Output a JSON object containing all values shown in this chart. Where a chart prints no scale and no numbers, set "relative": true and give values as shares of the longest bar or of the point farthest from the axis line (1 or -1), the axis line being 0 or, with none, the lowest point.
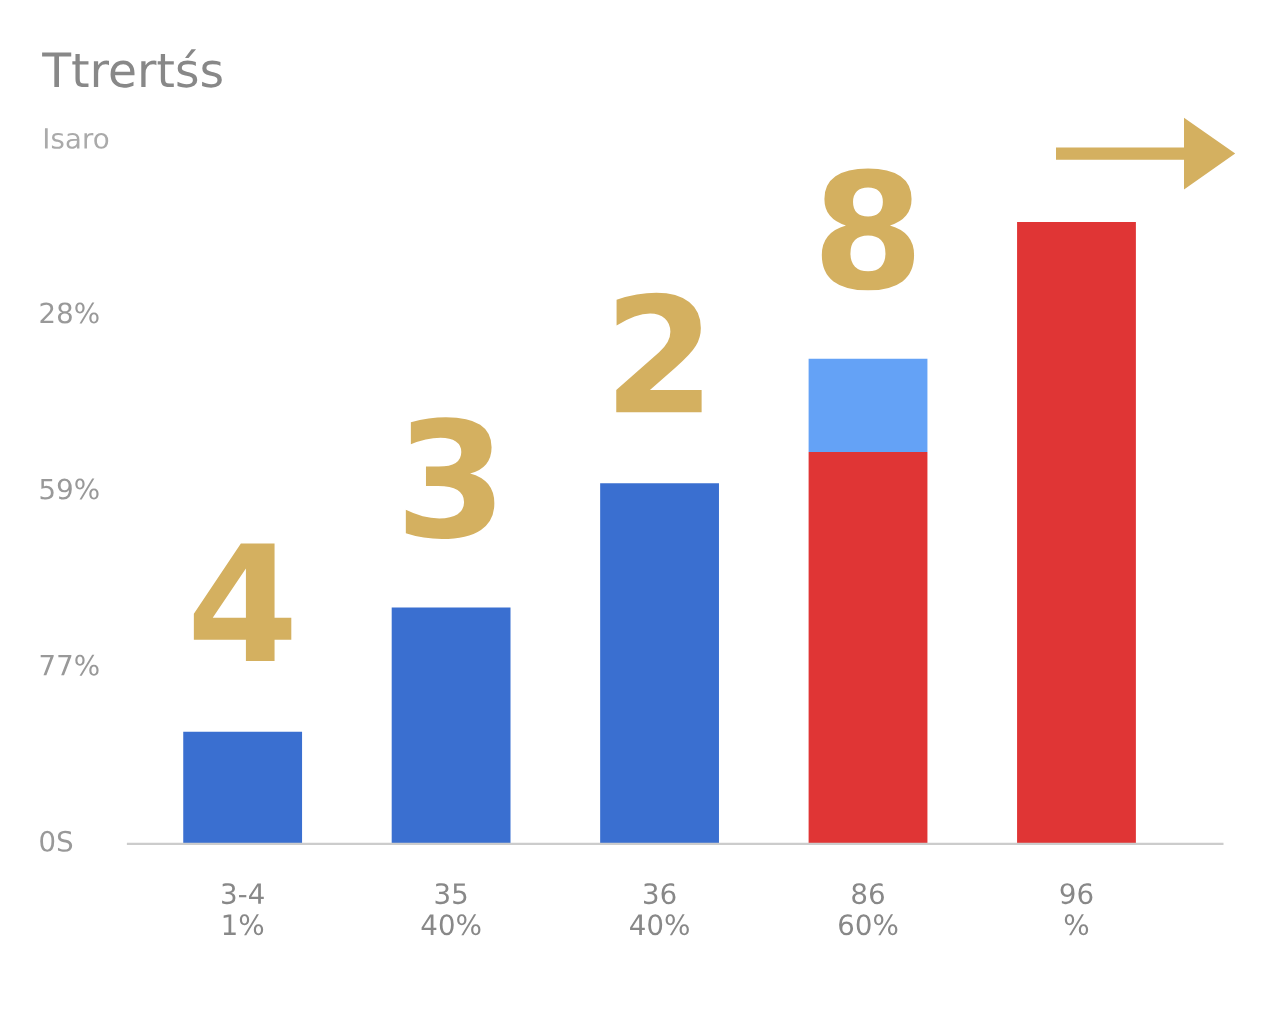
{
  "chart_data": {
    "type": "bar",
    "title": "Ttrertśs",
    "subtitle": "Isaro",
    "categories": [
      "3-4\n1%",
      "35\n40%",
      "36\n40%",
      "86\n60%",
      "96\n%"
    ],
    "stacked": true,
    "relative": true,
    "series": [
      {
        "colors": [
          "#3a6fd0",
          "#3a6fd0",
          "#3a6fd0",
          "#e03535",
          "#e03535"
        ],
        "values": [
          0.18,
          0.38,
          0.58,
          0.63,
          1
        ]
      },
      {
        "color": "#64a2f6",
        "values": [
          null,
          null,
          null,
          0.15,
          null
        ]
      }
    ],
    "annotations": [
      "0S",
      "77%",
      "59%",
      "28%",
      "4",
      "3",
      "2",
      "8"
    ],
    "grid": false,
    "legend": false
  }
}
